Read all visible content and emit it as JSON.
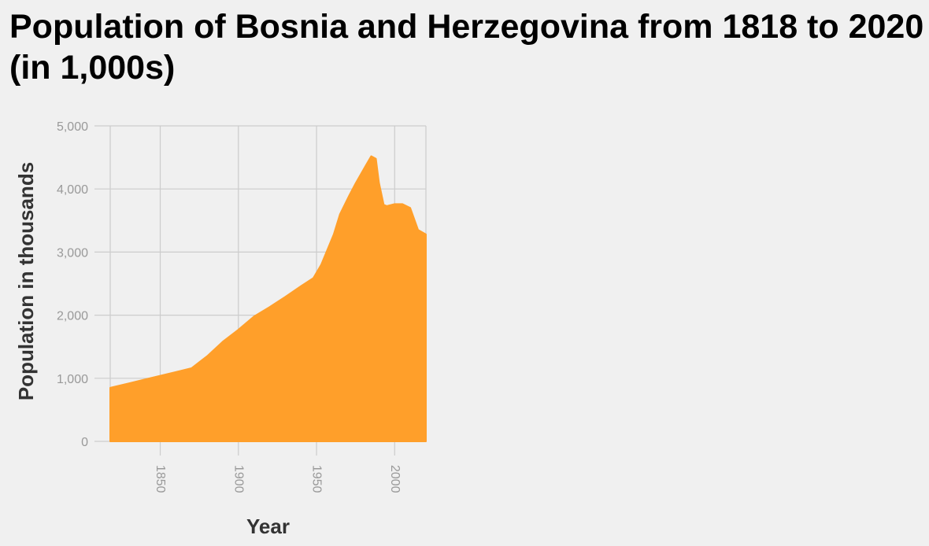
{
  "chart_data": {
    "type": "area",
    "title": "Population of Bosnia and Herzegovina from 1818 to 2020 (in 1,000s)",
    "xlabel": "Year",
    "ylabel": "Population in thousands",
    "xlim": [
      1818,
      2020
    ],
    "ylim": [
      0,
      5000
    ],
    "x_ticks": [
      1850,
      1900,
      1950,
      2000
    ],
    "x_tick_labels": [
      "1850",
      "1900",
      "1950",
      "2000"
    ],
    "y_ticks": [
      0,
      1000,
      2000,
      3000,
      4000,
      5000
    ],
    "y_tick_labels": [
      "0",
      "1,000",
      "2,000",
      "3,000",
      "4,000",
      "5,000"
    ],
    "grid": true,
    "color": "#ff9f2a",
    "series": [
      {
        "x": [
          1818,
          1830,
          1840,
          1850,
          1860,
          1870,
          1880,
          1890,
          1900,
          1910,
          1920,
          1930,
          1940,
          1948,
          1953,
          1961,
          1965,
          1971,
          1975,
          1981,
          1985,
          1988,
          1990,
          1993,
          1995,
          2000,
          2005,
          2010,
          2015,
          2020
        ],
        "y": [
          850,
          920,
          980,
          1040,
          1100,
          1160,
          1350,
          1580,
          1770,
          1980,
          2130,
          2290,
          2460,
          2590,
          2800,
          3280,
          3600,
          3900,
          4090,
          4350,
          4520,
          4480,
          4100,
          3750,
          3730,
          3760,
          3760,
          3700,
          3350,
          3280
        ]
      }
    ]
  }
}
